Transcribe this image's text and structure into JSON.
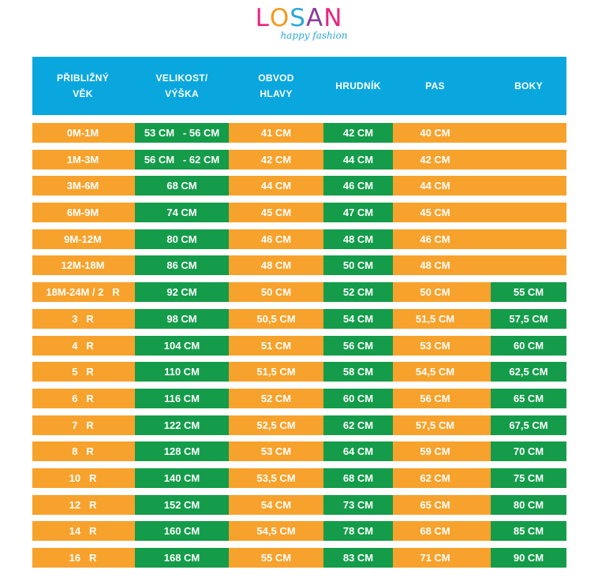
{
  "logo": {
    "letters": [
      {
        "char": "L",
        "color": "#e8277d"
      },
      {
        "char": "O",
        "color": "#f39a1e"
      },
      {
        "char": "S",
        "color": "#2aa8d8"
      },
      {
        "char": "A",
        "color": "#8a3f97"
      },
      {
        "char": "N",
        "color": "#e8277d"
      }
    ],
    "tagline": "happy fashion"
  },
  "colors": {
    "header_bg": "#0aa7de",
    "row_bg": "#f7a22c",
    "highlight": "#149c4a"
  },
  "table": {
    "headers": [
      "PŘIBLIŽNÝ\nVĚK",
      "VELIKOST/\nVÝŠKA",
      "OBVOD\nHLAVY",
      "HRUDNÍK",
      "PAS",
      "BOKY"
    ],
    "rows": [
      [
        "0M-1M",
        "53 CM   - 56 CM",
        "41 CM",
        "42 CM",
        "40 CM",
        ""
      ],
      [
        "1M-3M",
        "56 CM   - 62 CM",
        "42 CM",
        "44 CM",
        "42 CM",
        ""
      ],
      [
        "3M-6M",
        "68 CM",
        "44 CM",
        "46 CM",
        "44 CM",
        ""
      ],
      [
        "6M-9M",
        "74 CM",
        "45 CM",
        "47 CM",
        "45 CM",
        ""
      ],
      [
        "9M-12M",
        "80 CM",
        "46 CM",
        "48 CM",
        "46 CM",
        ""
      ],
      [
        "12M-18M",
        "86 CM",
        "48 CM",
        "50 CM",
        "48 CM",
        ""
      ],
      [
        "18M-24M / 2   R",
        "92 CM",
        "50 CM",
        "52 CM",
        "50 CM",
        "55 CM"
      ],
      [
        "3   R",
        "98 CM",
        "50,5 CM",
        "54 CM",
        "51,5 CM",
        "57,5 CM"
      ],
      [
        "4   R",
        "104 CM",
        "51 CM",
        "56 CM",
        "53 CM",
        "60 CM"
      ],
      [
        "5   R",
        "110 CM",
        "51,5 CM",
        "58 CM",
        "54,5 CM",
        "62,5 CM"
      ],
      [
        "6   R",
        "116 CM",
        "52 CM",
        "60 CM",
        "56 CM",
        "65 CM"
      ],
      [
        "7   R",
        "122 CM",
        "52,5 CM",
        "62 CM",
        "57,5 CM",
        "67,5 CM"
      ],
      [
        "8   R",
        "128 CM",
        "53 CM",
        "64 CM",
        "59 CM",
        "70 CM"
      ],
      [
        "10   R",
        "140 CM",
        "53,5 CM",
        "68 CM",
        "62 CM",
        "75 CM"
      ],
      [
        "12   R",
        "152 CM",
        "54 CM",
        "73 CM",
        "65 CM",
        "80 CM"
      ],
      [
        "14   R",
        "160 CM",
        "54,5 CM",
        "78 CM",
        "68 CM",
        "85 CM"
      ],
      [
        "16   R",
        "168 CM",
        "55 CM",
        "83 CM",
        "71 CM",
        "90 CM"
      ]
    ]
  }
}
